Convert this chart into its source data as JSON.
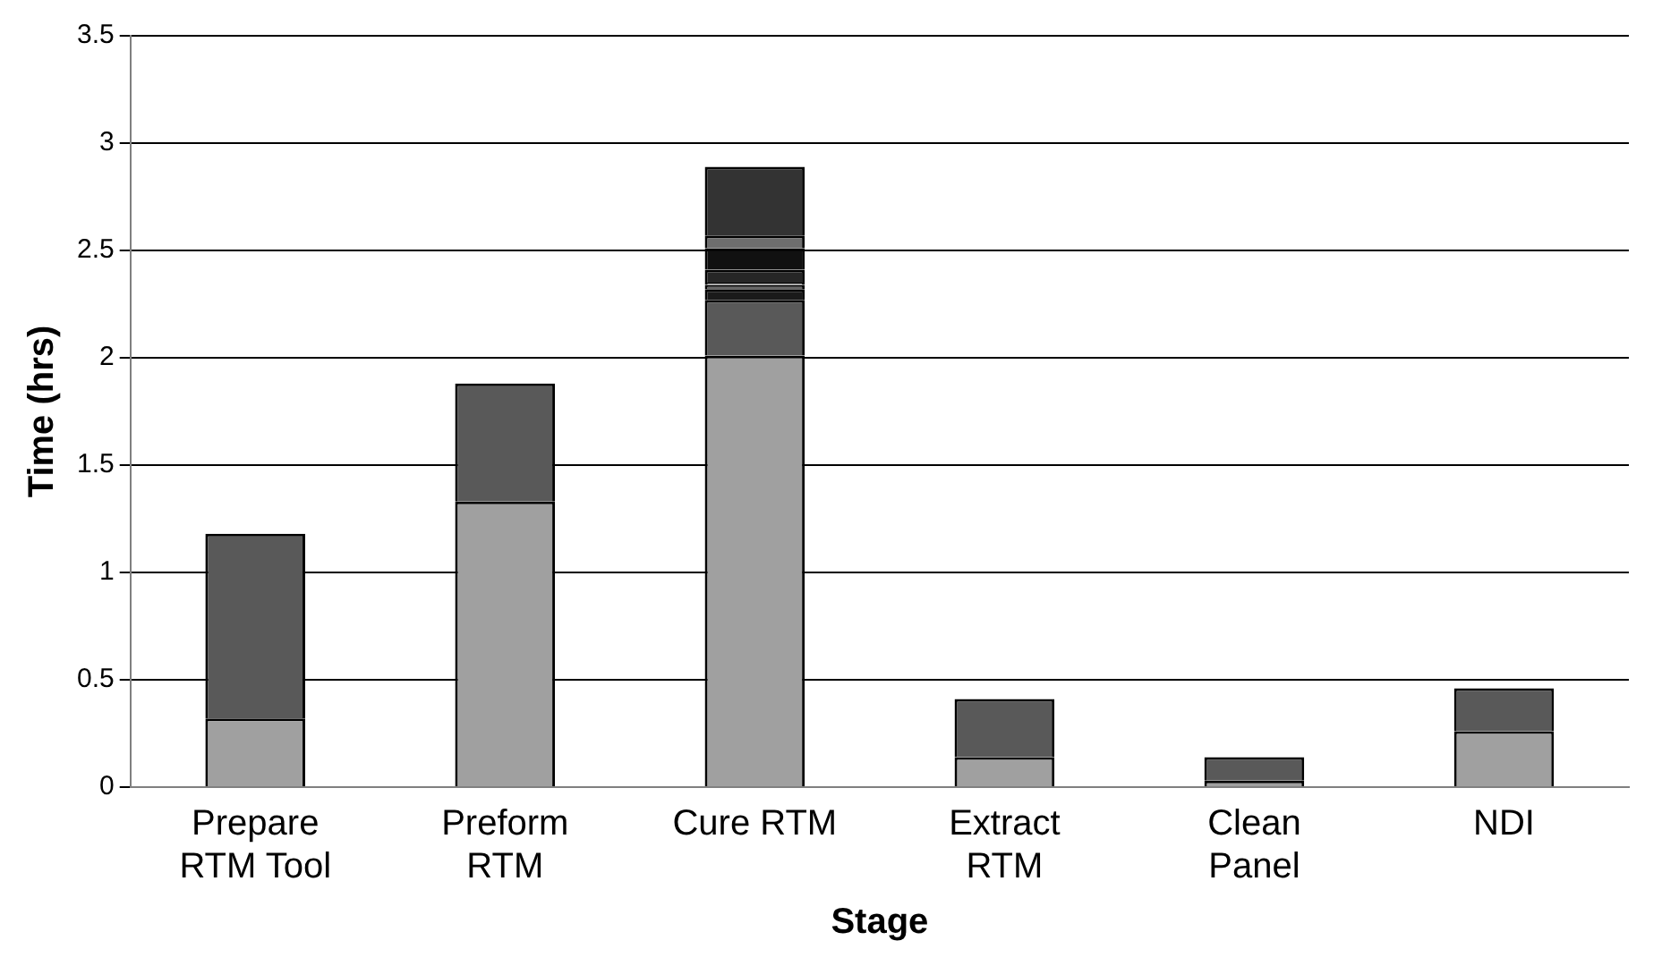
{
  "chart_data": {
    "type": "bar",
    "stacked": true,
    "xlabel": "Stage",
    "ylabel": "Time (hrs)",
    "categories": [
      "Prepare RTM Tool",
      "Preform RTM",
      "Cure RTM",
      "Extract RTM",
      "Clean Panel",
      "NDI"
    ],
    "series": [
      {
        "color": "#a0a0a0",
        "values": [
          0.32,
          1.33,
          2.01,
          0.14,
          0.03,
          0.26
        ]
      },
      {
        "color": "#595959",
        "values": [
          0.86,
          0.55,
          0.26,
          0.27,
          0.11,
          0.2
        ]
      },
      {
        "color": "#1a1a1a",
        "values": [
          null,
          null,
          0.05,
          null,
          null,
          null
        ]
      },
      {
        "color": "#666666",
        "values": [
          null,
          null,
          0.02,
          null,
          null,
          null
        ]
      },
      {
        "color": "#a0a0a0",
        "values": [
          null,
          null,
          0.01,
          null,
          null,
          null
        ]
      },
      {
        "color": "#262626",
        "values": [
          null,
          null,
          0.06,
          null,
          null,
          null
        ]
      },
      {
        "color": "#111111",
        "values": [
          null,
          null,
          0.1,
          null,
          null,
          null
        ]
      },
      {
        "color": "#6e6e6e",
        "values": [
          null,
          null,
          0.06,
          null,
          null,
          null
        ]
      },
      {
        "color": "#333333",
        "values": [
          null,
          null,
          0.32,
          null,
          null,
          null
        ]
      }
    ],
    "ylim": [
      0,
      3.5
    ],
    "yticks": [
      0,
      0.5,
      1,
      1.5,
      2,
      2.5,
      3,
      3.5
    ],
    "grid": "y",
    "legend": false
  }
}
